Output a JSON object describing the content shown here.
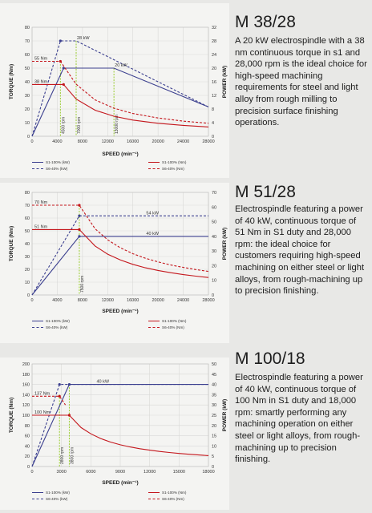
{
  "colors": {
    "s1_power": "#3b3f8f",
    "s6_power": "#3b3f8f",
    "s1_torque": "#c4161c",
    "s6_torque": "#c4161c",
    "marker": "#9acd32",
    "grid": "#d6d6d4"
  },
  "panels": [
    {
      "title": "M 38/28",
      "description": "A 20 kW electrospindle with a 38 nm continuous torque in s1 and 28,000 rpm is the ideal choice for high-speed machining requirements for steel and light alloy from rough milling to precision surface finishing operations.",
      "legend": [
        "S1-100% (kW)",
        "S6-40% (kW)",
        "S1-100% (Nm)",
        "S6-40% (Nm)"
      ]
    },
    {
      "title": "M 51/28",
      "description": "Electrospindle featuring a power of 40 kW, continuous torque of 51 Nm in S1 duty and 28,000 rpm: the ideal choice for customers requiring high-speed machining on either steel or light alloys, from rough-machining up to precision finishing.",
      "legend": [
        "S1-100% (kW)",
        "S6-40% (kW)",
        "S1-100% (Nm)",
        "S6-40% (Nm)"
      ]
    },
    {
      "title": "M 100/18",
      "description": "Electrospindle featuring a power of 40 kW, continuous torque of 100 Nm in S1 duty and 18,000 rpm: smartly performing any machining operation on either steel or light alloys, from rough-machining up to precision finishing.",
      "legend": [
        "S1-100% (kW)",
        "S6-40% (kW)",
        "S1-100% (Nm)",
        "S6-40% (Nm)"
      ]
    }
  ],
  "chart_data": [
    {
      "type": "line",
      "title": "",
      "xlabel": "SPEED (min⁻¹)",
      "ylabel": "TORQUE (Nm)",
      "y2label": "POWER (kW)",
      "xlim": [
        0,
        28000
      ],
      "ylim": [
        0,
        80
      ],
      "y2lim": [
        0,
        32
      ],
      "xticks": [
        "0",
        "4000",
        "8000",
        "12000",
        "16000",
        "20000",
        "24000",
        "28000"
      ],
      "yticks": [
        "0",
        "10",
        "20",
        "30",
        "40",
        "50",
        "60",
        "70",
        "80"
      ],
      "y2ticks": [
        "0",
        "4",
        "8",
        "12",
        "16",
        "20",
        "24",
        "28",
        "32"
      ],
      "series": [
        {
          "name": "S1-100% (kW)",
          "axis": "right",
          "style": "solid",
          "color": "#3b3f8f",
          "x": [
            0,
            5000,
            13000,
            28000
          ],
          "y": [
            0,
            20,
            20,
            8.6
          ]
        },
        {
          "name": "S6-40% (kW)",
          "axis": "right",
          "style": "dashed",
          "color": "#3b3f8f",
          "x": [
            0,
            4500,
            7000,
            28000
          ],
          "y": [
            0,
            28,
            28,
            8.6
          ]
        },
        {
          "name": "S1-100% (Nm)",
          "axis": "left",
          "style": "solid",
          "color": "#c4161c",
          "x": [
            0,
            5000,
            7000,
            10000,
            13000,
            16000,
            20000,
            24000,
            28000
          ],
          "y": [
            38,
            38,
            27.3,
            19.1,
            14.7,
            11.9,
            9.5,
            8,
            6.8
          ]
        },
        {
          "name": "S6-40% (Nm)",
          "axis": "left",
          "style": "dashed",
          "color": "#c4161c",
          "x": [
            0,
            4500,
            7000,
            10000,
            13000,
            16000,
            20000,
            24000,
            28000
          ],
          "y": [
            55,
            55,
            38.2,
            26.7,
            20.6,
            16.7,
            13.4,
            11.1,
            9.5
          ]
        }
      ],
      "annotations": [
        {
          "text": "28 kW",
          "x": 7000,
          "y": 28,
          "axis": "right"
        },
        {
          "text": "20 kW",
          "x": 13000,
          "y": 20,
          "axis": "right"
        },
        {
          "text": "55 Nm",
          "x": 0,
          "y": 55,
          "axis": "left"
        },
        {
          "text": "38 Nm",
          "x": 0,
          "y": 38,
          "axis": "left"
        }
      ],
      "markers": [
        {
          "text": "4500 rpm",
          "x": 4500,
          "ytop": 55
        },
        {
          "text": "7000 rpm",
          "x": 7000,
          "ytop": 70
        },
        {
          "text": "13000 rpm",
          "x": 13000,
          "ytop": 50
        }
      ]
    },
    {
      "type": "line",
      "title": "",
      "xlabel": "SPEED (min⁻¹)",
      "ylabel": "TORQUE (Nm)",
      "y2label": "POWER (kW)",
      "xlim": [
        0,
        28000
      ],
      "ylim": [
        0,
        80
      ],
      "y2lim": [
        0,
        70
      ],
      "xticks": [
        "0",
        "4000",
        "8000",
        "12000",
        "16000",
        "20000",
        "24000",
        "28000"
      ],
      "yticks": [
        "0",
        "10",
        "20",
        "30",
        "40",
        "50",
        "60",
        "70",
        "80"
      ],
      "y2ticks": [
        "0",
        "10",
        "20",
        "30",
        "40",
        "50",
        "60",
        "70"
      ],
      "series": [
        {
          "name": "S1-100% (kW)",
          "axis": "right",
          "style": "solid",
          "color": "#3b3f8f",
          "x": [
            0,
            7500,
            28000
          ],
          "y": [
            0,
            40,
            40
          ]
        },
        {
          "name": "S6-40% (kW)",
          "axis": "right",
          "style": "dashed",
          "color": "#3b3f8f",
          "x": [
            0,
            7500,
            28000
          ],
          "y": [
            0,
            54,
            54
          ]
        },
        {
          "name": "S1-100% (Nm)",
          "axis": "left",
          "style": "solid",
          "color": "#c4161c",
          "x": [
            0,
            7500,
            10000,
            12000,
            14000,
            16000,
            18000,
            20000,
            22000,
            24000,
            26000,
            28000
          ],
          "y": [
            51,
            51,
            38.2,
            31.8,
            27.3,
            23.9,
            21.2,
            19.1,
            17.4,
            15.9,
            14.7,
            13.6
          ]
        },
        {
          "name": "S6-40% (Nm)",
          "axis": "left",
          "style": "dashed",
          "color": "#c4161c",
          "x": [
            0,
            7500,
            10000,
            12000,
            14000,
            16000,
            18000,
            20000,
            22000,
            24000,
            26000,
            28000
          ],
          "y": [
            70,
            70,
            51.6,
            43,
            36.8,
            32.2,
            28.6,
            25.8,
            23.4,
            21.5,
            19.8,
            18.4
          ]
        }
      ],
      "annotations": [
        {
          "text": "70 Nm",
          "x": 0,
          "y": 70,
          "axis": "left"
        },
        {
          "text": "51 Nm",
          "x": 0,
          "y": 51,
          "axis": "left"
        },
        {
          "text": "54 kW",
          "x": 18000,
          "y": 54,
          "axis": "right"
        },
        {
          "text": "40 kW",
          "x": 18000,
          "y": 40,
          "axis": "right"
        }
      ],
      "markers": [
        {
          "text": "7500 rpm",
          "x": 7500,
          "ytop": 70
        }
      ]
    },
    {
      "type": "line",
      "title": "",
      "xlabel": "SPEED (min⁻¹)",
      "ylabel": "TORQUE (Nm)",
      "y2label": "POWER (kW)",
      "xlim": [
        0,
        18000
      ],
      "ylim": [
        0,
        200
      ],
      "y2lim": [
        0,
        50
      ],
      "xticks": [
        "0",
        "3000",
        "6000",
        "9000",
        "12000",
        "15000",
        "18000"
      ],
      "yticks": [
        "0",
        "20",
        "40",
        "60",
        "80",
        "100",
        "120",
        "140",
        "160",
        "180",
        "200"
      ],
      "y2ticks": [
        "0",
        "5",
        "10",
        "15",
        "20",
        "25",
        "30",
        "35",
        "40",
        "45",
        "50"
      ],
      "series": [
        {
          "name": "S1-100% (kW)",
          "axis": "right",
          "style": "solid",
          "color": "#3b3f8f",
          "x": [
            0,
            3800,
            18000
          ],
          "y": [
            0,
            40,
            40
          ]
        },
        {
          "name": "S6-40% (kW)",
          "axis": "right",
          "style": "dashed",
          "color": "#3b3f8f",
          "x": [
            0,
            2800,
            18000
          ],
          "y": [
            0,
            40,
            40
          ]
        },
        {
          "name": "S1-100% (Nm)",
          "axis": "left",
          "style": "solid",
          "color": "#c4161c",
          "x": [
            0,
            3800,
            5000,
            6000,
            7000,
            8000,
            9000,
            10000,
            11000,
            12000,
            13000,
            14000,
            15000,
            16000,
            17000,
            18000
          ],
          "y": [
            100,
            100,
            76,
            63.7,
            54.6,
            47.7,
            42.4,
            38.2,
            34.7,
            31.8,
            29.4,
            27.3,
            25.5,
            23.9,
            22.5,
            21.2
          ]
        },
        {
          "name": "S6-40% (Nm)",
          "axis": "left",
          "style": "dashed",
          "color": "#c4161c",
          "x": [
            0,
            2800,
            3400
          ],
          "y": [
            137,
            137,
            120
          ]
        }
      ],
      "annotations": [
        {
          "text": "40 kW",
          "x": 6500,
          "y": 40,
          "axis": "right"
        },
        {
          "text": "137 Nm",
          "x": 0,
          "y": 137,
          "axis": "left"
        },
        {
          "text": "100 Nm",
          "x": 0,
          "y": 100,
          "axis": "left"
        }
      ],
      "markers": [
        {
          "text": "2800 rpm",
          "x": 2800,
          "ytop": 140
        },
        {
          "text": "3800 rpm",
          "x": 3800,
          "ytop": 160
        }
      ]
    }
  ]
}
